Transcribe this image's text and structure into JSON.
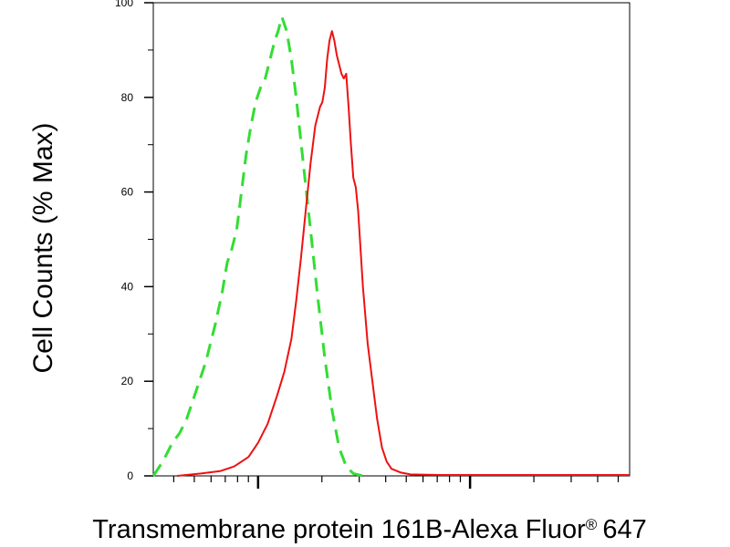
{
  "chart_data": {
    "type": "line",
    "title": "",
    "xlabel": "Transmembrane protein 161B-Alexa Fluor",
    "xlabel_superscript": "®",
    "xlabel_suffix": "647",
    "ylabel": "Cell Counts (% Max)",
    "xscale": "log",
    "ylim": [
      0,
      100
    ],
    "yticks": [
      0,
      20,
      40,
      60,
      80,
      100
    ],
    "grid": false,
    "legend": "none",
    "series": [
      {
        "color": "#33dd33",
        "linestyle": "dashed",
        "points": [
          [
            0.0,
            0
          ],
          [
            0.02,
            3
          ],
          [
            0.04,
            7
          ],
          [
            0.055,
            9
          ],
          [
            0.07,
            12
          ],
          [
            0.09,
            18
          ],
          [
            0.11,
            24
          ],
          [
            0.13,
            32
          ],
          [
            0.145,
            39
          ],
          [
            0.155,
            45
          ],
          [
            0.165,
            48
          ],
          [
            0.175,
            52
          ],
          [
            0.185,
            60
          ],
          [
            0.195,
            68
          ],
          [
            0.205,
            74
          ],
          [
            0.215,
            79
          ],
          [
            0.225,
            82
          ],
          [
            0.235,
            84
          ],
          [
            0.245,
            88
          ],
          [
            0.255,
            92
          ],
          [
            0.262,
            94
          ],
          [
            0.27,
            97
          ],
          [
            0.28,
            94
          ],
          [
            0.29,
            88
          ],
          [
            0.3,
            80
          ],
          [
            0.315,
            66
          ],
          [
            0.33,
            52
          ],
          [
            0.345,
            38
          ],
          [
            0.36,
            25
          ],
          [
            0.375,
            14
          ],
          [
            0.39,
            6
          ],
          [
            0.405,
            2
          ],
          [
            0.42,
            0.5
          ],
          [
            0.44,
            0
          ]
        ]
      },
      {
        "color": "#ee1111",
        "linestyle": "solid",
        "points": [
          [
            0.05,
            0
          ],
          [
            0.1,
            0.5
          ],
          [
            0.14,
            1
          ],
          [
            0.17,
            2
          ],
          [
            0.2,
            4
          ],
          [
            0.22,
            7
          ],
          [
            0.24,
            11
          ],
          [
            0.26,
            17
          ],
          [
            0.275,
            22
          ],
          [
            0.29,
            29
          ],
          [
            0.3,
            37
          ],
          [
            0.31,
            46
          ],
          [
            0.32,
            56
          ],
          [
            0.33,
            66
          ],
          [
            0.34,
            74
          ],
          [
            0.35,
            78
          ],
          [
            0.355,
            79
          ],
          [
            0.36,
            82
          ],
          [
            0.365,
            88
          ],
          [
            0.37,
            92
          ],
          [
            0.375,
            94
          ],
          [
            0.38,
            92
          ],
          [
            0.385,
            89
          ],
          [
            0.39,
            87
          ],
          [
            0.395,
            85
          ],
          [
            0.4,
            84
          ],
          [
            0.405,
            85
          ],
          [
            0.41,
            78
          ],
          [
            0.415,
            70
          ],
          [
            0.42,
            63
          ],
          [
            0.425,
            61
          ],
          [
            0.43,
            56
          ],
          [
            0.435,
            48
          ],
          [
            0.44,
            40
          ],
          [
            0.445,
            34
          ],
          [
            0.45,
            28
          ],
          [
            0.46,
            20
          ],
          [
            0.47,
            12
          ],
          [
            0.48,
            6
          ],
          [
            0.49,
            3
          ],
          [
            0.5,
            1.5
          ],
          [
            0.52,
            0.7
          ],
          [
            0.54,
            0.3
          ],
          [
            0.6,
            0.2
          ],
          [
            1.0,
            0.2
          ]
        ]
      }
    ]
  }
}
